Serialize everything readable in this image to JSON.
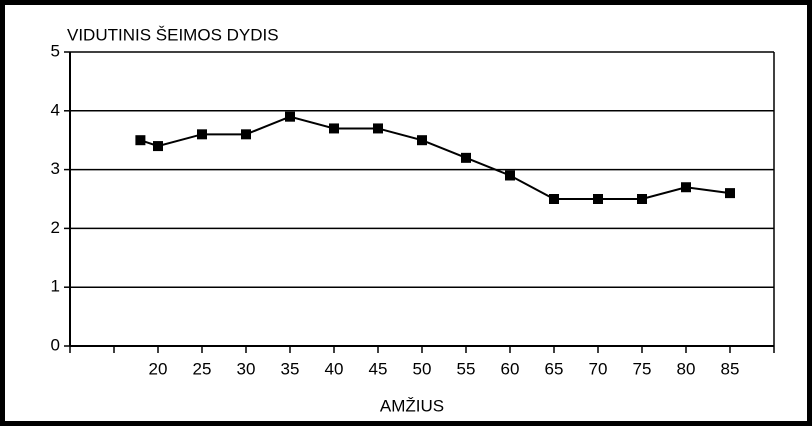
{
  "chart_data": {
    "type": "line",
    "title": "VIDUTINIS ŠEIMOS DYDIS",
    "x_label": "AMŽIUS",
    "x": [
      18,
      20,
      25,
      30,
      35,
      40,
      45,
      50,
      55,
      60,
      65,
      70,
      75,
      80,
      85
    ],
    "series": [
      {
        "name": "VIDUTINIS ŠEIMOS DYDIS",
        "color": "#000000",
        "values": [
          3.5,
          3.4,
          3.6,
          3.6,
          3.9,
          3.7,
          3.7,
          3.5,
          3.2,
          2.9,
          2.5,
          2.5,
          2.5,
          2.7,
          2.6
        ]
      }
    ],
    "xlim": [
      10,
      90
    ],
    "xticks": [
      20,
      25,
      30,
      35,
      40,
      45,
      50,
      55,
      60,
      65,
      70,
      75,
      80,
      85
    ],
    "xminorticks": [
      10,
      15,
      90
    ],
    "ylim": [
      0,
      5
    ],
    "yticks": [
      0,
      1,
      2,
      3,
      4,
      5
    ],
    "grid": true
  }
}
